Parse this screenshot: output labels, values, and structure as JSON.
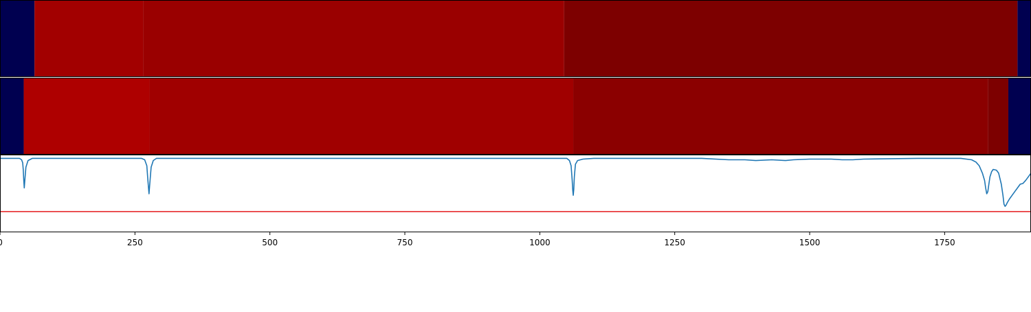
{
  "chart_data": [
    {
      "type": "heatmap",
      "xlim": [
        0,
        1910
      ],
      "colors": {
        "background": "#000050"
      },
      "segments": [
        {
          "x0": 0,
          "x1": 64,
          "color": "#000050"
        },
        {
          "x0": 64,
          "x1": 265,
          "color": "#a20000"
        },
        {
          "x0": 265,
          "x1": 1045,
          "color": "#9a0000"
        },
        {
          "x0": 1045,
          "x1": 1885,
          "color": "#7d0000"
        },
        {
          "x0": 1885,
          "x1": 1910,
          "color": "#000050"
        }
      ]
    },
    {
      "type": "heatmap",
      "xlim": [
        0,
        1910
      ],
      "colors": {
        "background": "#000050"
      },
      "segments": [
        {
          "x0": 0,
          "x1": 44,
          "color": "#000050"
        },
        {
          "x0": 44,
          "x1": 277,
          "color": "#ae0000"
        },
        {
          "x0": 277,
          "x1": 1062,
          "color": "#a00000"
        },
        {
          "x0": 1062,
          "x1": 1830,
          "color": "#8b0000"
        },
        {
          "x0": 1830,
          "x1": 1868,
          "color": "#7d0000"
        },
        {
          "x0": 1868,
          "x1": 1910,
          "color": "#000050"
        }
      ]
    },
    {
      "type": "line",
      "xlim": [
        0,
        1910
      ],
      "ylim": [
        -1.0,
        0.05
      ],
      "x_ticks": [
        0,
        250,
        500,
        750,
        1000,
        1250,
        1500,
        1750
      ],
      "x_tick_labels": [
        "0",
        "250",
        "500",
        "750",
        "1000",
        "1250",
        "1500",
        "1750"
      ],
      "threshold": {
        "y": -0.72,
        "color": "#e41a1c"
      },
      "series": [
        {
          "color": "#1f77b4",
          "x": [
            0,
            36,
            40,
            42,
            43,
            44,
            45,
            46,
            48,
            52,
            60,
            262,
            268,
            272,
            274,
            276,
            278,
            280,
            284,
            290,
            300,
            1050,
            1055,
            1058,
            1060,
            1061,
            1062,
            1063,
            1064,
            1066,
            1070,
            1080,
            1100,
            1300,
            1350,
            1380,
            1400,
            1430,
            1455,
            1470,
            1500,
            1540,
            1560,
            1580,
            1600,
            1700,
            1780,
            1800,
            1808,
            1814,
            1820,
            1824,
            1826,
            1828,
            1830,
            1832,
            1834,
            1837,
            1840,
            1846,
            1850,
            1855,
            1858,
            1860,
            1862,
            1864,
            1866,
            1870,
            1875,
            1880,
            1885,
            1890,
            1895,
            1900,
            1905,
            1910
          ],
          "y": [
            0.0,
            0.0,
            -0.02,
            -0.06,
            -0.15,
            -0.3,
            -0.4,
            -0.3,
            -0.12,
            -0.03,
            0.0,
            0.0,
            -0.02,
            -0.1,
            -0.3,
            -0.48,
            -0.3,
            -0.12,
            -0.03,
            0.0,
            0.0,
            0.0,
            -0.03,
            -0.1,
            -0.3,
            -0.42,
            -0.5,
            -0.42,
            -0.25,
            -0.08,
            -0.03,
            -0.01,
            0.0,
            0.0,
            -0.02,
            -0.02,
            -0.03,
            -0.02,
            -0.03,
            -0.02,
            -0.01,
            -0.01,
            -0.02,
            -0.02,
            -0.01,
            0.0,
            0.0,
            -0.02,
            -0.05,
            -0.1,
            -0.2,
            -0.3,
            -0.4,
            -0.48,
            -0.45,
            -0.35,
            -0.25,
            -0.18,
            -0.15,
            -0.16,
            -0.2,
            -0.35,
            -0.5,
            -0.62,
            -0.65,
            -0.63,
            -0.6,
            -0.55,
            -0.5,
            -0.45,
            -0.4,
            -0.35,
            -0.34,
            -0.3,
            -0.25,
            -0.2
          ]
        }
      ]
    }
  ]
}
